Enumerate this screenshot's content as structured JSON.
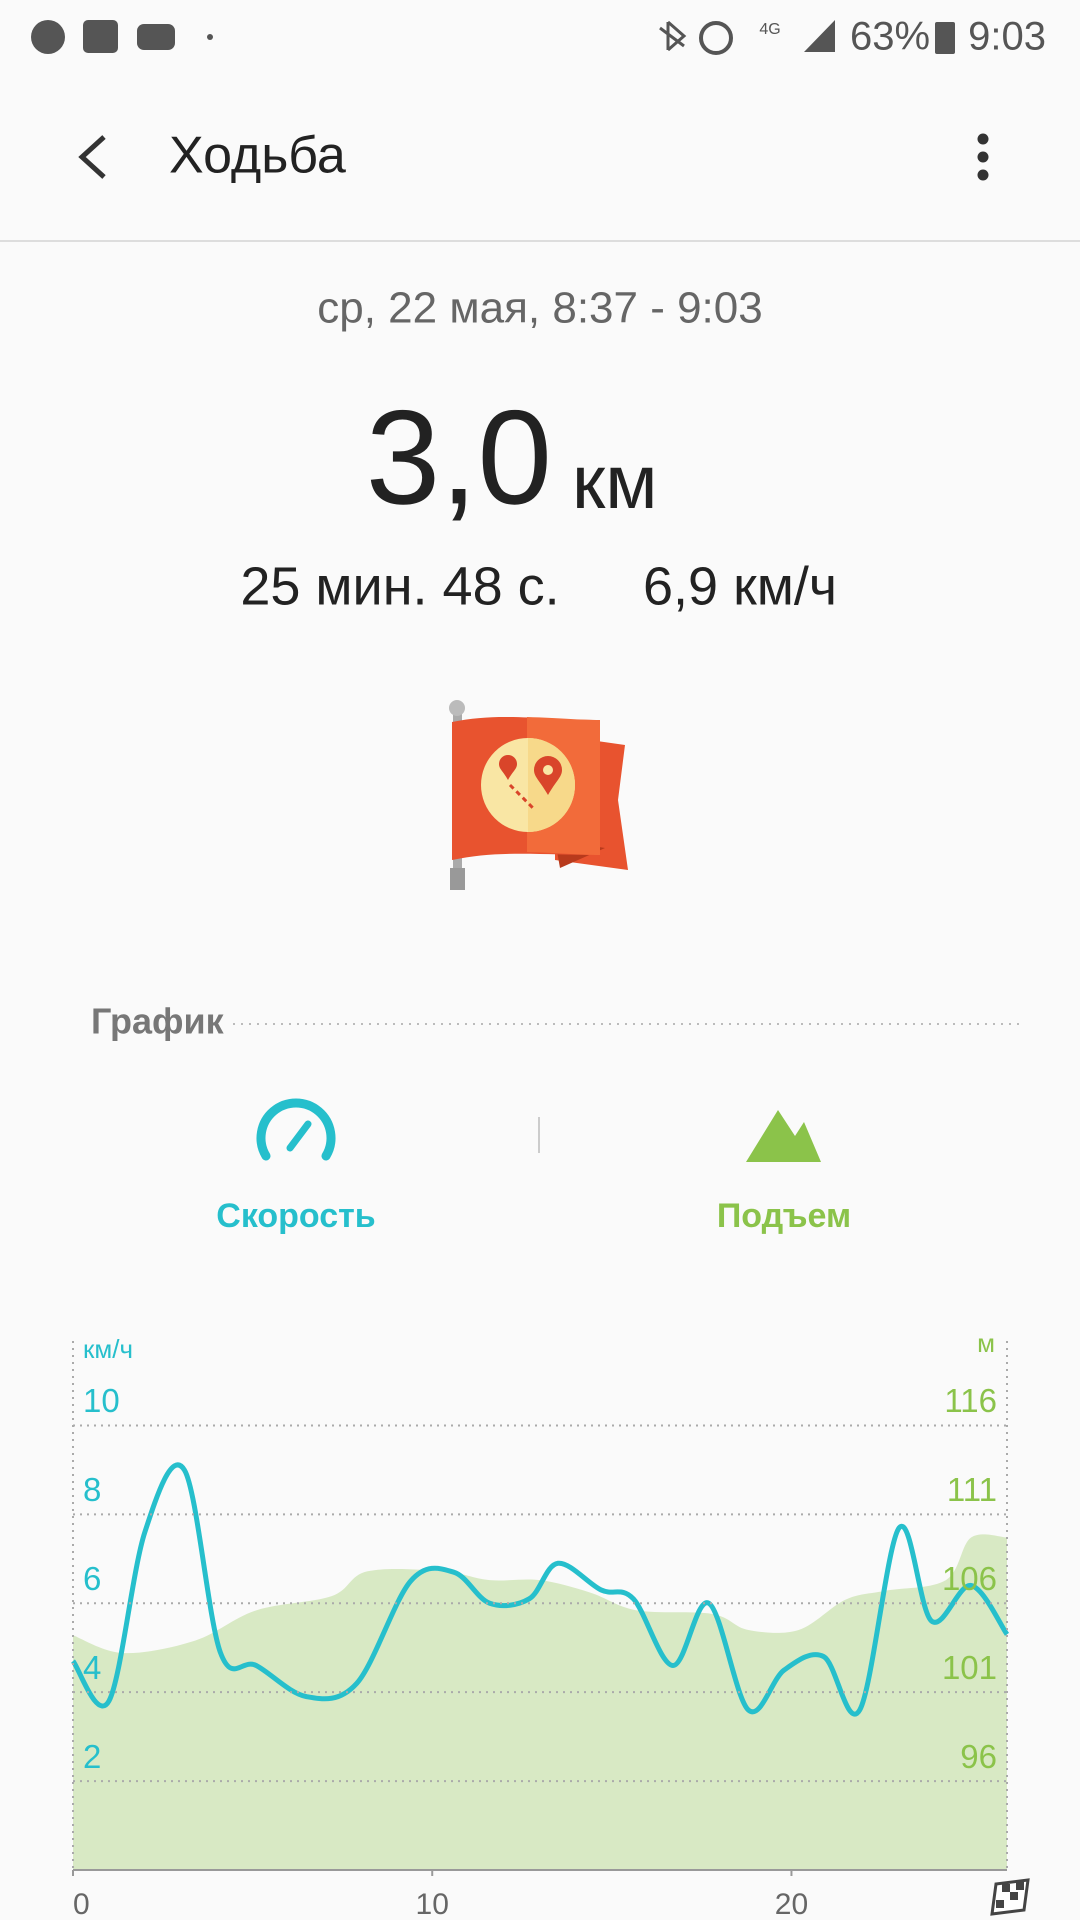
{
  "status_bar": {
    "network": "4G",
    "battery": "63%",
    "time": "9:03"
  },
  "header": {
    "title": "Ходьба"
  },
  "summary": {
    "date": "ср, 22 мая, 8:37 - 9:03",
    "distance": "3,0",
    "distance_unit": "км",
    "duration": "25 мин. 48 с.",
    "speed": "6,9 км/ч"
  },
  "section": {
    "title": "График"
  },
  "chart_data": {
    "type": "line",
    "y_label": "км/ч",
    "y2_label": "м",
    "xlim": [
      0,
      26
    ],
    "xticks": [
      0,
      10,
      20
    ],
    "ylim": [
      0,
      11.9
    ],
    "yticks": [
      2,
      4,
      6,
      8,
      10
    ],
    "y2lim": [
      91,
      120.75
    ],
    "y2ticks": [
      96,
      101,
      106,
      111,
      116
    ],
    "grid": true,
    "series": [
      {
        "name": "Скорость",
        "color": "#26bfcc",
        "axis": "y",
        "x": [
          0,
          1,
          2,
          3.1,
          4.1,
          5.1,
          6.5,
          7.9,
          9.4,
          10.6,
          11.6,
          12.7,
          13.5,
          14.7,
          15.6,
          16.7,
          17.7,
          18.8,
          19.8,
          20.9,
          21.9,
          23,
          23.9,
          25,
          26
        ],
        "values": [
          4.7,
          3.8,
          7.6,
          9.0,
          4.9,
          4.6,
          3.9,
          4.2,
          6.5,
          6.7,
          6.0,
          6.1,
          6.9,
          6.3,
          6.1,
          4.6,
          6.0,
          3.6,
          4.5,
          4.8,
          3.6,
          7.7,
          5.6,
          6.4,
          5.3
        ]
      },
      {
        "name": "Подъем",
        "color": "#8bc34a",
        "axis": "y2",
        "x": [
          0,
          1.4,
          3.4,
          5.1,
          7.2,
          8.2,
          10.3,
          11.6,
          13,
          14.4,
          15.7,
          17.8,
          18.8,
          20.2,
          21.5,
          22.6,
          24.3,
          25,
          26
        ],
        "values": [
          104.2,
          103.2,
          103.9,
          105.6,
          106.4,
          107.8,
          107.8,
          107.3,
          107.3,
          106.6,
          105.6,
          105.4,
          104.5,
          104.5,
          106.2,
          106.7,
          107.3,
          109.7,
          109.7
        ]
      }
    ]
  }
}
